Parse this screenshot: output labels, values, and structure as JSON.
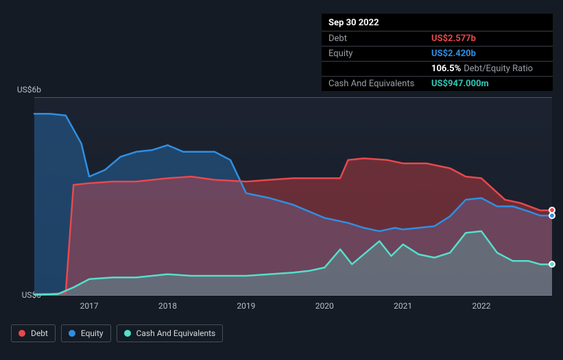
{
  "tooltip": {
    "date": "Sep 30 2022",
    "debt_label": "Debt",
    "debt_value": "US$2.577b",
    "equity_label": "Equity",
    "equity_value": "US$2.420b",
    "ratio_value": "106.5%",
    "ratio_label": "Debt/Equity Ratio",
    "cash_label": "Cash And Equivalents",
    "cash_value": "US$947.000m"
  },
  "chart": {
    "type": "area",
    "background_color": "#151b24",
    "plot_background": "#1c2330",
    "grid_color": "#50555e",
    "text_color": "#b9bec6",
    "yaxis": {
      "top_label": "US$6b",
      "bottom_label": "US$0",
      "min": 0,
      "max": 6
    },
    "xaxis": {
      "start": 2016.3,
      "end": 2022.9,
      "labels": [
        "2017",
        "2018",
        "2019",
        "2020",
        "2021",
        "2022"
      ]
    },
    "series": {
      "debt": {
        "label": "Debt",
        "color": "#e9484d",
        "fill": "rgba(233,72,77,0.38)",
        "data": [
          [
            2016.3,
            0.05
          ],
          [
            2016.5,
            0.05
          ],
          [
            2016.7,
            0.08
          ],
          [
            2016.8,
            3.35
          ],
          [
            2017.0,
            3.4
          ],
          [
            2017.3,
            3.45
          ],
          [
            2017.6,
            3.45
          ],
          [
            2018.0,
            3.55
          ],
          [
            2018.3,
            3.6
          ],
          [
            2018.6,
            3.5
          ],
          [
            2019.0,
            3.45
          ],
          [
            2019.3,
            3.5
          ],
          [
            2019.6,
            3.55
          ],
          [
            2020.0,
            3.55
          ],
          [
            2020.2,
            3.55
          ],
          [
            2020.3,
            4.1
          ],
          [
            2020.5,
            4.15
          ],
          [
            2020.8,
            4.1
          ],
          [
            2021.0,
            4.0
          ],
          [
            2021.3,
            4.0
          ],
          [
            2021.6,
            3.85
          ],
          [
            2021.8,
            3.6
          ],
          [
            2022.0,
            3.55
          ],
          [
            2022.3,
            2.9
          ],
          [
            2022.5,
            2.8
          ],
          [
            2022.75,
            2.577
          ],
          [
            2022.9,
            2.577
          ]
        ]
      },
      "equity": {
        "label": "Equity",
        "color": "#2f8fe3",
        "fill": "rgba(47,143,227,0.33)",
        "data": [
          [
            2016.3,
            5.5
          ],
          [
            2016.5,
            5.5
          ],
          [
            2016.7,
            5.45
          ],
          [
            2016.9,
            4.6
          ],
          [
            2017.0,
            3.6
          ],
          [
            2017.2,
            3.8
          ],
          [
            2017.4,
            4.2
          ],
          [
            2017.6,
            4.35
          ],
          [
            2017.8,
            4.4
          ],
          [
            2018.0,
            4.55
          ],
          [
            2018.2,
            4.35
          ],
          [
            2018.4,
            4.35
          ],
          [
            2018.6,
            4.35
          ],
          [
            2018.8,
            4.1
          ],
          [
            2019.0,
            3.1
          ],
          [
            2019.3,
            2.95
          ],
          [
            2019.6,
            2.75
          ],
          [
            2019.8,
            2.55
          ],
          [
            2020.0,
            2.35
          ],
          [
            2020.3,
            2.2
          ],
          [
            2020.5,
            2.05
          ],
          [
            2020.7,
            1.95
          ],
          [
            2020.9,
            2.05
          ],
          [
            2021.0,
            2.0
          ],
          [
            2021.2,
            2.05
          ],
          [
            2021.4,
            2.1
          ],
          [
            2021.6,
            2.4
          ],
          [
            2021.8,
            2.9
          ],
          [
            2022.0,
            2.95
          ],
          [
            2022.2,
            2.7
          ],
          [
            2022.4,
            2.7
          ],
          [
            2022.6,
            2.55
          ],
          [
            2022.75,
            2.42
          ],
          [
            2022.9,
            2.42
          ]
        ]
      },
      "cash": {
        "label": "Cash And Equivalents",
        "color": "#55e0cb",
        "fill": "rgba(85,224,203,0.25)",
        "data": [
          [
            2016.3,
            0.03
          ],
          [
            2016.6,
            0.05
          ],
          [
            2016.8,
            0.25
          ],
          [
            2017.0,
            0.5
          ],
          [
            2017.3,
            0.55
          ],
          [
            2017.6,
            0.55
          ],
          [
            2018.0,
            0.65
          ],
          [
            2018.3,
            0.6
          ],
          [
            2018.6,
            0.6
          ],
          [
            2019.0,
            0.6
          ],
          [
            2019.3,
            0.65
          ],
          [
            2019.6,
            0.7
          ],
          [
            2019.8,
            0.75
          ],
          [
            2020.0,
            0.85
          ],
          [
            2020.2,
            1.4
          ],
          [
            2020.35,
            0.95
          ],
          [
            2020.5,
            1.25
          ],
          [
            2020.7,
            1.65
          ],
          [
            2020.85,
            1.2
          ],
          [
            2021.0,
            1.55
          ],
          [
            2021.2,
            1.25
          ],
          [
            2021.4,
            1.15
          ],
          [
            2021.6,
            1.3
          ],
          [
            2021.8,
            1.9
          ],
          [
            2022.0,
            1.95
          ],
          [
            2022.2,
            1.3
          ],
          [
            2022.4,
            1.05
          ],
          [
            2022.6,
            1.05
          ],
          [
            2022.75,
            0.947
          ],
          [
            2022.9,
            0.947
          ]
        ]
      }
    },
    "legend": [
      {
        "key": "debt",
        "label": "Debt",
        "color": "#e9484d"
      },
      {
        "key": "equity",
        "label": "Equity",
        "color": "#2f8fe3"
      },
      {
        "key": "cash",
        "label": "Cash And Equivalents",
        "color": "#55e0cb"
      }
    ]
  }
}
